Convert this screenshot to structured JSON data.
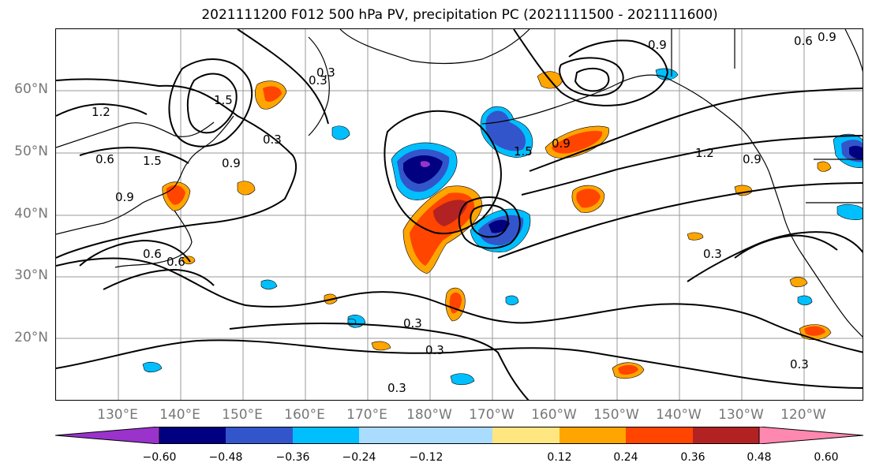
{
  "title": "2021111200 F012 500 hPa PV, precipitation PC (2021111500 - 2021111600)",
  "lat_labels": [
    "60°N",
    "50°N",
    "40°N",
    "30°N",
    "20°N"
  ],
  "lon_labels": [
    "130°E",
    "140°E",
    "150°E",
    "160°E",
    "170°E",
    "180°W",
    "170°W",
    "160°W",
    "150°W",
    "140°W",
    "130°W",
    "120°W"
  ],
  "colorbar": {
    "ticks": [
      "−0.60",
      "−0.48",
      "−0.36",
      "−0.24",
      "−0.12",
      "0.12",
      "0.24",
      "0.36",
      "0.48",
      "0.60"
    ],
    "colors": [
      "#9933cc",
      "#000080",
      "#3355cc",
      "#00bfff",
      "#aadcff",
      "#ffffff",
      "#ffe680",
      "#ffa500",
      "#ff4500",
      "#b22222",
      "#ff88b0"
    ]
  },
  "contour_labels": [
    "0.3",
    "0.3",
    "0.3",
    "0.3",
    "0.3",
    "0.3",
    "0.3",
    "0.6",
    "0.6",
    "0.6",
    "0.9",
    "0.9",
    "0.9",
    "0.9",
    "1.2",
    "1.2",
    "1.5",
    "1.5",
    "1.5",
    "0.9",
    "0.6",
    "0.9",
    "0.3"
  ]
}
